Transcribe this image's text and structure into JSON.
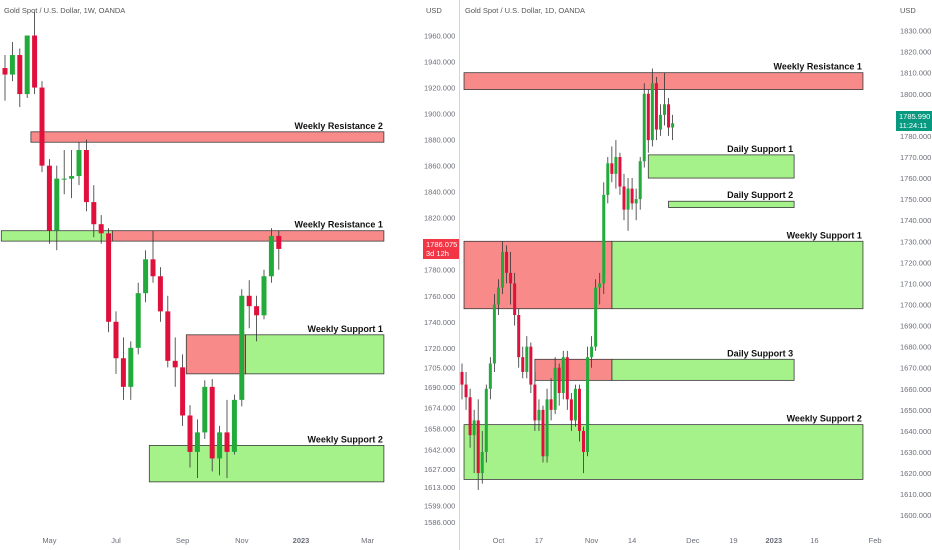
{
  "left": {
    "header": "Gold Spot / U.S. Dollar, 1W, OANDA",
    "currency": "USD",
    "price_tag": {
      "price": "1786.075",
      "sub": "3d 12h",
      "color": "#f23645"
    },
    "chart_data": {
      "type": "candlestick",
      "title": "Gold Spot / U.S. Dollar, 1W, OANDA",
      "ylim": [
        1580,
        1975
      ],
      "y_ticks": [
        1960,
        1940,
        1920,
        1900,
        1880,
        1860,
        1840,
        1820,
        1800,
        1780,
        1760,
        1740,
        1720,
        1705,
        1690,
        1674,
        1658,
        1642,
        1627,
        1613,
        1599,
        1586
      ],
      "y_tick_labels": [
        "1960.000",
        "1940.000",
        "1920.000",
        "1900.000",
        "1880.000",
        "1860.000",
        "1840.000",
        "1820.000",
        "1800.000",
        "1780.000",
        "1760.000",
        "1740.000",
        "1720.000",
        "1705.000",
        "1690.000",
        "1674.000",
        "1658.000",
        "1642.000",
        "1627.000",
        "1613.000",
        "1599.000",
        "1586.000"
      ],
      "x_ticks": [
        {
          "label": "May",
          "bar": 6
        },
        {
          "label": "Jul",
          "bar": 15
        },
        {
          "label": "Sep",
          "bar": 24
        },
        {
          "label": "Nov",
          "bar": 32
        },
        {
          "label": "2023",
          "bar": 40
        },
        {
          "label": "Mar",
          "bar": 49
        }
      ],
      "candles": [
        {
          "o": 1935,
          "h": 1945,
          "l": 1910,
          "c": 1930
        },
        {
          "o": 1930,
          "h": 1955,
          "l": 1925,
          "c": 1945
        },
        {
          "o": 1945,
          "h": 1950,
          "l": 1905,
          "c": 1915
        },
        {
          "o": 1915,
          "h": 1960,
          "l": 1912,
          "c": 1960
        },
        {
          "o": 1960,
          "h": 1978,
          "l": 1915,
          "c": 1920
        },
        {
          "o": 1920,
          "h": 1925,
          "l": 1855,
          "c": 1860
        },
        {
          "o": 1860,
          "h": 1865,
          "l": 1800,
          "c": 1810
        },
        {
          "o": 1810,
          "h": 1860,
          "l": 1795,
          "c": 1850
        },
        {
          "o": 1850,
          "h": 1872,
          "l": 1838,
          "c": 1850
        },
        {
          "o": 1850,
          "h": 1872,
          "l": 1835,
          "c": 1852
        },
        {
          "o": 1852,
          "h": 1878,
          "l": 1845,
          "c": 1872
        },
        {
          "o": 1872,
          "h": 1880,
          "l": 1825,
          "c": 1832
        },
        {
          "o": 1832,
          "h": 1845,
          "l": 1805,
          "c": 1815
        },
        {
          "o": 1815,
          "h": 1822,
          "l": 1800,
          "c": 1808
        },
        {
          "o": 1808,
          "h": 1812,
          "l": 1732,
          "c": 1740
        },
        {
          "o": 1740,
          "h": 1748,
          "l": 1700,
          "c": 1712
        },
        {
          "o": 1712,
          "h": 1728,
          "l": 1680,
          "c": 1690
        },
        {
          "o": 1690,
          "h": 1725,
          "l": 1680,
          "c": 1720
        },
        {
          "o": 1720,
          "h": 1770,
          "l": 1715,
          "c": 1762
        },
        {
          "o": 1762,
          "h": 1795,
          "l": 1755,
          "c": 1788
        },
        {
          "o": 1788,
          "h": 1810,
          "l": 1770,
          "c": 1775
        },
        {
          "o": 1775,
          "h": 1782,
          "l": 1740,
          "c": 1748
        },
        {
          "o": 1748,
          "h": 1760,
          "l": 1705,
          "c": 1710
        },
        {
          "o": 1710,
          "h": 1728,
          "l": 1690,
          "c": 1705
        },
        {
          "o": 1705,
          "h": 1715,
          "l": 1660,
          "c": 1668
        },
        {
          "o": 1668,
          "h": 1676,
          "l": 1628,
          "c": 1640
        },
        {
          "o": 1640,
          "h": 1665,
          "l": 1620,
          "c": 1655
        },
        {
          "o": 1655,
          "h": 1695,
          "l": 1650,
          "c": 1690
        },
        {
          "o": 1690,
          "h": 1696,
          "l": 1625,
          "c": 1635
        },
        {
          "o": 1635,
          "h": 1660,
          "l": 1622,
          "c": 1655
        },
        {
          "o": 1655,
          "h": 1680,
          "l": 1620,
          "c": 1640
        },
        {
          "o": 1640,
          "h": 1684,
          "l": 1638,
          "c": 1680
        },
        {
          "o": 1680,
          "h": 1765,
          "l": 1675,
          "c": 1760
        },
        {
          "o": 1760,
          "h": 1772,
          "l": 1735,
          "c": 1752
        },
        {
          "o": 1752,
          "h": 1760,
          "l": 1725,
          "c": 1745
        },
        {
          "o": 1745,
          "h": 1780,
          "l": 1742,
          "c": 1775
        },
        {
          "o": 1775,
          "h": 1812,
          "l": 1770,
          "c": 1806
        },
        {
          "o": 1806,
          "h": 1810,
          "l": 1780,
          "c": 1796
        }
      ]
    },
    "zones": [
      {
        "label": "Weekly Resistance 2",
        "kind": "resistance",
        "y_top": 1886,
        "y_bot": 1878,
        "bar_start": 3.5,
        "bar_end": 51.2
      },
      {
        "label": "Weekly Resistance 1",
        "kind": "resistance",
        "y_top": 1810,
        "y_bot": 1802,
        "bar_start": 14.5,
        "bar_end": 51.2
      },
      {
        "label": "",
        "kind": "support",
        "y_top": 1810,
        "y_bot": 1802,
        "bar_start": -0.5,
        "bar_end": 14.5
      },
      {
        "label": "Weekly Support 1",
        "kind": "support",
        "y_top": 1730,
        "y_bot": 1700,
        "bar_start": 32.5,
        "bar_end": 51.2
      },
      {
        "label": "",
        "kind": "resistance",
        "y_top": 1730,
        "y_bot": 1700,
        "bar_start": 24.5,
        "bar_end": 32.5
      },
      {
        "label": "Weekly Support 2",
        "kind": "support",
        "y_top": 1645,
        "y_bot": 1617,
        "bar_start": 19.5,
        "bar_end": 51.2
      }
    ]
  },
  "right": {
    "header": "Gold Spot / U.S. Dollar, 1D, OANDA",
    "currency": "USD",
    "price_tag": {
      "price": "1785.990",
      "sub": "11:24:11",
      "color": "#089981"
    },
    "chart_data": {
      "type": "candlestick",
      "title": "Gold Spot / U.S. Dollar, 1D, OANDA",
      "ylim": [
        1593,
        1835
      ],
      "y_ticks": [
        1830,
        1820,
        1810,
        1800,
        1790,
        1780,
        1770,
        1760,
        1750,
        1740,
        1730,
        1720,
        1710,
        1700,
        1690,
        1680,
        1670,
        1660,
        1650,
        1640,
        1630,
        1620,
        1610,
        1600
      ],
      "y_tick_labels": [
        "1830.000",
        "1820.000",
        "1810.000",
        "1800.000",
        "1790.000",
        "1780.000",
        "1770.000",
        "1760.000",
        "1750.000",
        "1740.000",
        "1730.000",
        "1720.000",
        "1710.000",
        "1700.000",
        "1690.000",
        "1680.000",
        "1670.000",
        "1660.000",
        "1650.000",
        "1640.000",
        "1630.000",
        "1620.000",
        "1610.000",
        "1600.000"
      ],
      "x_ticks": [
        {
          "label": "Oct",
          "bar": 9
        },
        {
          "label": "17",
          "bar": 19
        },
        {
          "label": "Nov",
          "bar": 32
        },
        {
          "label": "14",
          "bar": 42
        },
        {
          "label": "Dec",
          "bar": 57
        },
        {
          "label": "19",
          "bar": 67
        },
        {
          "label": "2023",
          "bar": 77
        },
        {
          "label": "16",
          "bar": 87
        },
        {
          "label": "Feb",
          "bar": 102
        }
      ],
      "candles": [
        {
          "o": 1668,
          "h": 1672,
          "l": 1655,
          "c": 1662
        },
        {
          "o": 1662,
          "h": 1668,
          "l": 1650,
          "c": 1656
        },
        {
          "o": 1656,
          "h": 1660,
          "l": 1632,
          "c": 1638
        },
        {
          "o": 1638,
          "h": 1650,
          "l": 1620,
          "c": 1645
        },
        {
          "o": 1645,
          "h": 1655,
          "l": 1612,
          "c": 1620
        },
        {
          "o": 1620,
          "h": 1640,
          "l": 1615,
          "c": 1630
        },
        {
          "o": 1630,
          "h": 1662,
          "l": 1625,
          "c": 1660
        },
        {
          "o": 1660,
          "h": 1675,
          "l": 1655,
          "c": 1672
        },
        {
          "o": 1672,
          "h": 1705,
          "l": 1668,
          "c": 1700
        },
        {
          "o": 1700,
          "h": 1712,
          "l": 1695,
          "c": 1708
        },
        {
          "o": 1708,
          "h": 1730,
          "l": 1705,
          "c": 1725
        },
        {
          "o": 1725,
          "h": 1728,
          "l": 1710,
          "c": 1715
        },
        {
          "o": 1715,
          "h": 1725,
          "l": 1700,
          "c": 1710
        },
        {
          "o": 1710,
          "h": 1715,
          "l": 1690,
          "c": 1695
        },
        {
          "o": 1695,
          "h": 1698,
          "l": 1670,
          "c": 1675
        },
        {
          "o": 1675,
          "h": 1680,
          "l": 1665,
          "c": 1668
        },
        {
          "o": 1668,
          "h": 1685,
          "l": 1665,
          "c": 1680
        },
        {
          "o": 1680,
          "h": 1682,
          "l": 1658,
          "c": 1662
        },
        {
          "o": 1662,
          "h": 1668,
          "l": 1640,
          "c": 1645
        },
        {
          "o": 1645,
          "h": 1655,
          "l": 1640,
          "c": 1650
        },
        {
          "o": 1650,
          "h": 1652,
          "l": 1625,
          "c": 1628
        },
        {
          "o": 1628,
          "h": 1660,
          "l": 1625,
          "c": 1655
        },
        {
          "o": 1655,
          "h": 1665,
          "l": 1645,
          "c": 1650
        },
        {
          "o": 1650,
          "h": 1675,
          "l": 1648,
          "c": 1670
        },
        {
          "o": 1670,
          "h": 1672,
          "l": 1652,
          "c": 1658
        },
        {
          "o": 1658,
          "h": 1678,
          "l": 1655,
          "c": 1675
        },
        {
          "o": 1675,
          "h": 1678,
          "l": 1650,
          "c": 1655
        },
        {
          "o": 1655,
          "h": 1658,
          "l": 1640,
          "c": 1645
        },
        {
          "o": 1645,
          "h": 1662,
          "l": 1642,
          "c": 1660
        },
        {
          "o": 1660,
          "h": 1662,
          "l": 1635,
          "c": 1640
        },
        {
          "o": 1640,
          "h": 1642,
          "l": 1620,
          "c": 1630
        },
        {
          "o": 1630,
          "h": 1680,
          "l": 1628,
          "c": 1675
        },
        {
          "o": 1675,
          "h": 1685,
          "l": 1670,
          "c": 1680
        },
        {
          "o": 1680,
          "h": 1712,
          "l": 1678,
          "c": 1708
        },
        {
          "o": 1708,
          "h": 1715,
          "l": 1700,
          "c": 1710
        },
        {
          "o": 1710,
          "h": 1758,
          "l": 1705,
          "c": 1752
        },
        {
          "o": 1752,
          "h": 1770,
          "l": 1748,
          "c": 1767
        },
        {
          "o": 1767,
          "h": 1775,
          "l": 1758,
          "c": 1762
        },
        {
          "o": 1762,
          "h": 1778,
          "l": 1755,
          "c": 1770
        },
        {
          "o": 1770,
          "h": 1772,
          "l": 1752,
          "c": 1756
        },
        {
          "o": 1756,
          "h": 1762,
          "l": 1740,
          "c": 1745
        },
        {
          "o": 1745,
          "h": 1760,
          "l": 1735,
          "c": 1755
        },
        {
          "o": 1755,
          "h": 1760,
          "l": 1745,
          "c": 1748
        },
        {
          "o": 1748,
          "h": 1755,
          "l": 1740,
          "c": 1750
        },
        {
          "o": 1750,
          "h": 1770,
          "l": 1745,
          "c": 1768
        },
        {
          "o": 1768,
          "h": 1805,
          "l": 1765,
          "c": 1800
        },
        {
          "o": 1800,
          "h": 1802,
          "l": 1772,
          "c": 1778
        },
        {
          "o": 1778,
          "h": 1812,
          "l": 1775,
          "c": 1805
        },
        {
          "o": 1805,
          "h": 1808,
          "l": 1778,
          "c": 1783
        },
        {
          "o": 1783,
          "h": 1795,
          "l": 1780,
          "c": 1790
        },
        {
          "o": 1790,
          "h": 1810,
          "l": 1785,
          "c": 1795
        },
        {
          "o": 1795,
          "h": 1798,
          "l": 1780,
          "c": 1784
        },
        {
          "o": 1784,
          "h": 1790,
          "l": 1778,
          "c": 1786
        }
      ]
    },
    "zones": [
      {
        "label": "Weekly Resistance 1",
        "kind": "resistance",
        "y_top": 1810,
        "y_bot": 1802,
        "bar_start": 0.5,
        "bar_end": 99
      },
      {
        "label": "Daily Support 1",
        "kind": "support",
        "y_top": 1771,
        "y_bot": 1760,
        "bar_start": 46,
        "bar_end": 82
      },
      {
        "label": "Daily Support 2",
        "kind": "support",
        "y_top": 1749,
        "y_bot": 1746,
        "bar_start": 51,
        "bar_end": 82
      },
      {
        "label": "Weekly Support 1",
        "kind": "support",
        "y_top": 1730,
        "y_bot": 1698,
        "bar_start": 37,
        "bar_end": 99
      },
      {
        "label": "",
        "kind": "resistance",
        "y_top": 1730,
        "y_bot": 1698,
        "bar_start": 0.5,
        "bar_end": 37
      },
      {
        "label": "Daily Support 3",
        "kind": "support",
        "y_top": 1674,
        "y_bot": 1664,
        "bar_start": 37,
        "bar_end": 82
      },
      {
        "label": "",
        "kind": "resistance",
        "y_top": 1674,
        "y_bot": 1664,
        "bar_start": 18,
        "bar_end": 37
      },
      {
        "label": "Weekly Support 2",
        "kind": "support",
        "y_top": 1643,
        "y_bot": 1617,
        "bar_start": 0.5,
        "bar_end": 99
      }
    ]
  },
  "colors": {
    "up": "#089981",
    "down": "#f23645",
    "candle_up": "#22ab3a",
    "candle_down": "#e0103d",
    "resistance_fill": "#f88a8a",
    "support_fill": "#a6f28a",
    "zone_border": "#3a3a3a",
    "axis_text": "#6b6f7a"
  }
}
